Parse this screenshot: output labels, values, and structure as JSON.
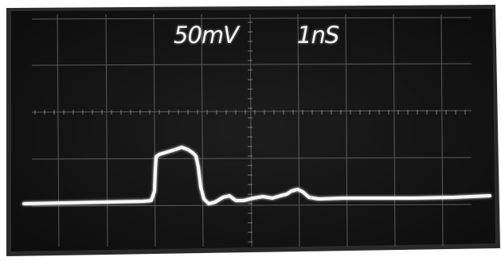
{
  "scope": {
    "volts_per_div": "50mV",
    "time_per_div": "1nS"
  },
  "colors": {
    "background": "#ffffff",
    "screen": "#151515",
    "screen_edge": "#2a2a2a",
    "graticule": "#6f6f6f",
    "trace": "#f7f7f7"
  },
  "icons": [
    "oscilloscope-trace"
  ]
}
